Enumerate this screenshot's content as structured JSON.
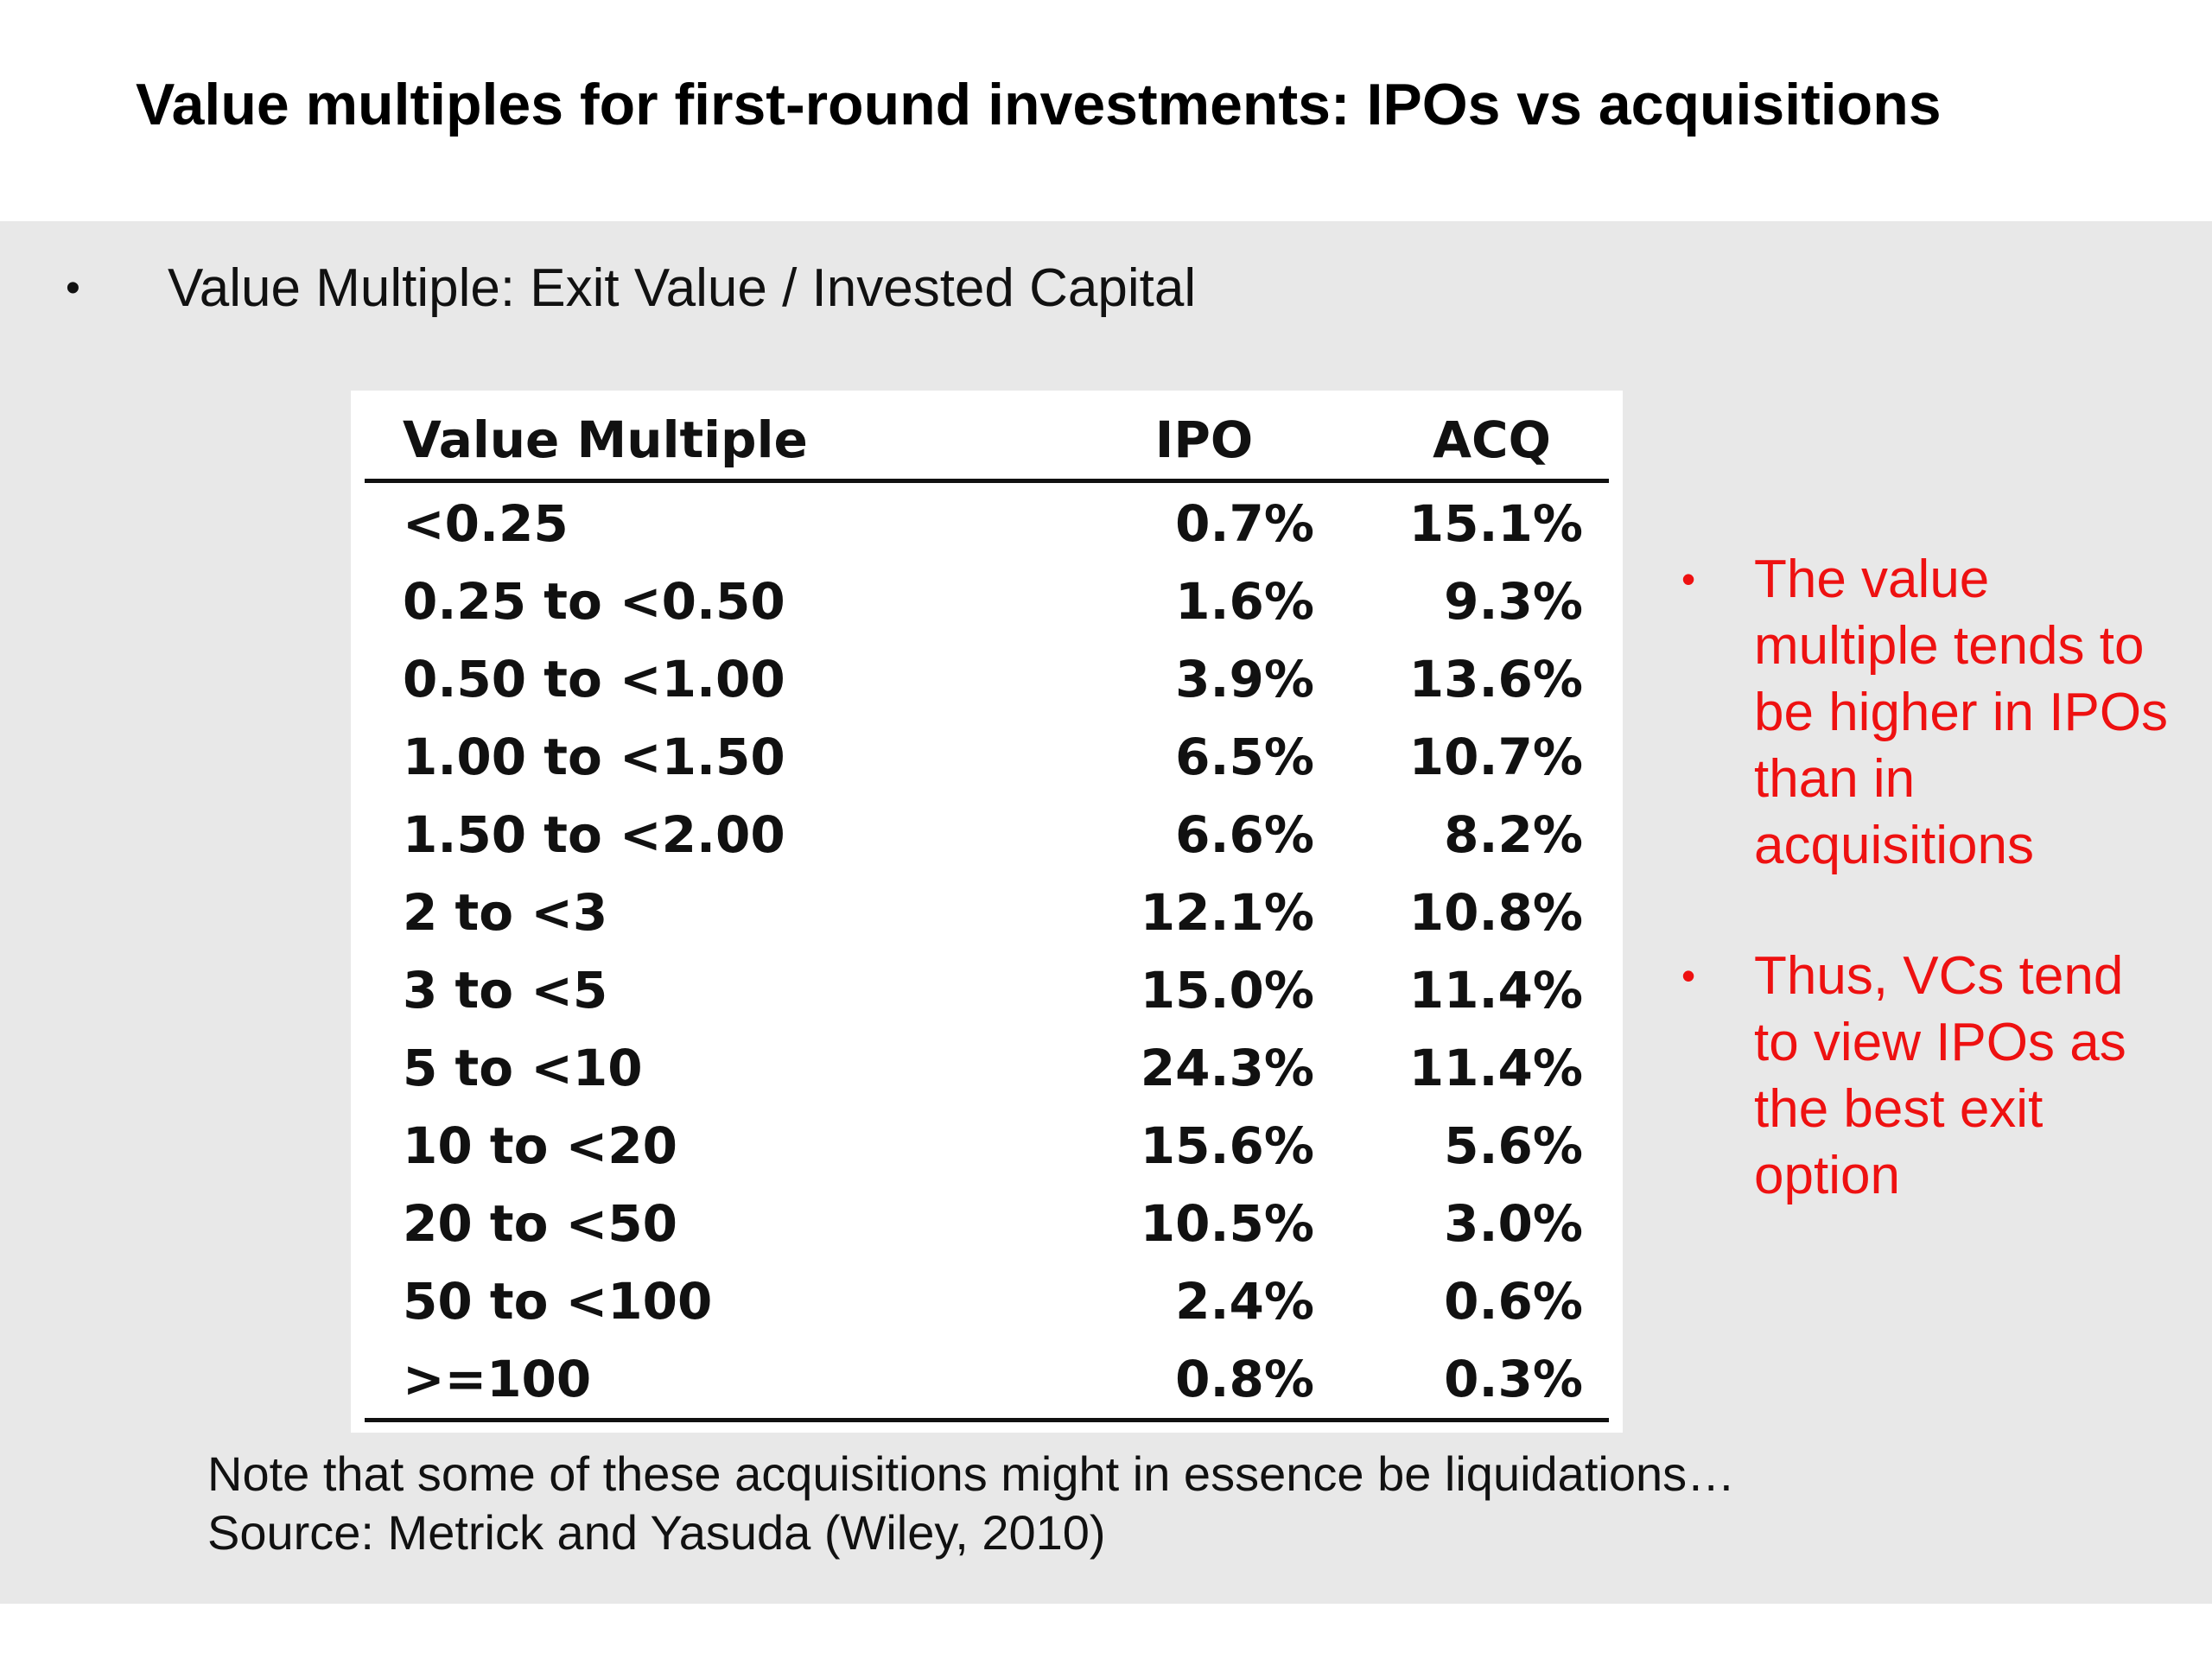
{
  "slide": {
    "title": "Value multiples for first-round investments: IPOs vs acquisitions",
    "bullet_main": "Value Multiple: Exit Value / Invested Capital",
    "bullet_symbol": "•"
  },
  "table": {
    "headers": [
      "Value Multiple",
      "IPO",
      "ACQ"
    ],
    "rows": [
      [
        "<0.25",
        "0.7%",
        "15.1%"
      ],
      [
        "0.25 to <0.50",
        "1.6%",
        "9.3%"
      ],
      [
        "0.50 to <1.00",
        "3.9%",
        "13.6%"
      ],
      [
        "1.00 to <1.50",
        "6.5%",
        "10.7%"
      ],
      [
        "1.50 to <2.00",
        "6.6%",
        "8.2%"
      ],
      [
        "2 to <3",
        "12.1%",
        "10.8%"
      ],
      [
        "3 to <5",
        "15.0%",
        "11.4%"
      ],
      [
        "5 to <10",
        "24.3%",
        "11.4%"
      ],
      [
        "10 to <20",
        "15.6%",
        "5.6%"
      ],
      [
        "20 to <50",
        "10.5%",
        "3.0%"
      ],
      [
        "50 to <100",
        "2.4%",
        "0.6%"
      ],
      [
        ">=100",
        "0.8%",
        "0.3%"
      ]
    ]
  },
  "side_notes": [
    "The value multiple tends to be higher in IPOs than in acquisitions",
    "Thus, VCs tend to view IPOs as the best exit option"
  ],
  "footer": {
    "note": "Note that some of these acquisitions might in essence be liquidations…",
    "source": "Source: Metrick and Yasuda (Wiley, 2010)"
  },
  "colors": {
    "accent_red": "#ee1111",
    "panel_gray": "#e8e8e8"
  }
}
